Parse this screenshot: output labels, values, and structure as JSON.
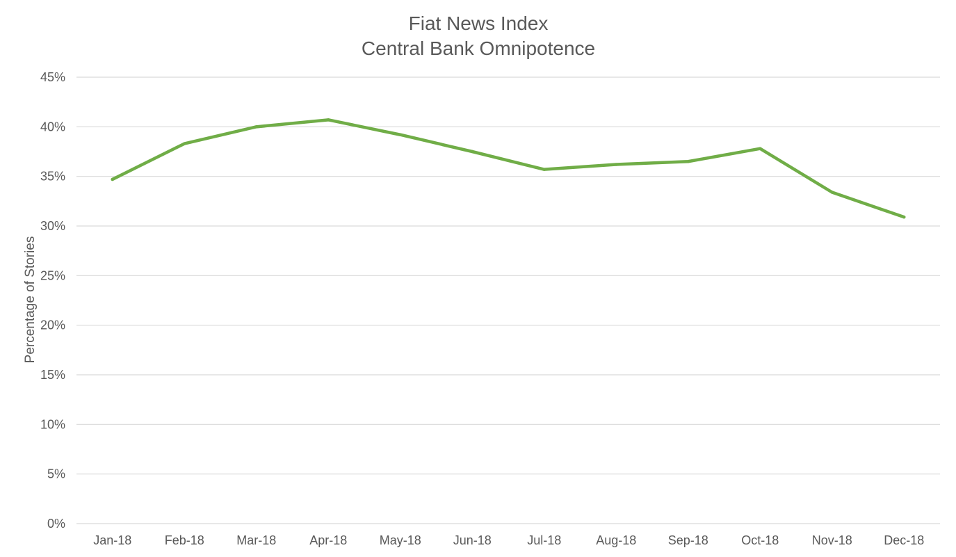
{
  "chart_data": {
    "type": "line",
    "title": "Fiat News Index",
    "subtitle": "Central Bank Omnipotence",
    "xlabel": "",
    "ylabel": "Percentage of Stories",
    "categories": [
      "Jan-18",
      "Feb-18",
      "Mar-18",
      "Apr-18",
      "May-18",
      "Jun-18",
      "Jul-18",
      "Aug-18",
      "Sep-18",
      "Oct-18",
      "Nov-18",
      "Dec-18"
    ],
    "series": [
      {
        "color": "#70ad47",
        "values": [
          0.347,
          0.383,
          0.4,
          0.407,
          0.392,
          0.375,
          0.357,
          0.362,
          0.365,
          0.378,
          0.334,
          0.309
        ]
      }
    ],
    "ylim": [
      0,
      0.45
    ],
    "ytick_values": [
      0,
      0.05,
      0.1,
      0.15,
      0.2,
      0.25,
      0.3,
      0.35,
      0.4,
      0.45
    ],
    "ytick_labels": [
      "0%",
      "5%",
      "10%",
      "15%",
      "20%",
      "25%",
      "30%",
      "35%",
      "40%",
      "45%"
    ],
    "grid": true,
    "legend": "none"
  }
}
